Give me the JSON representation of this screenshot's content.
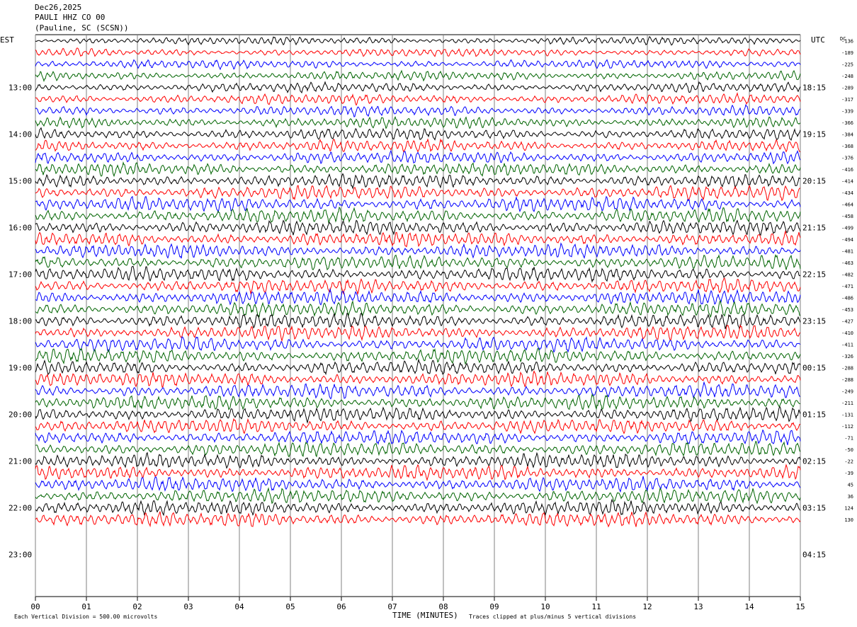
{
  "header": {
    "date": "Dec26,2025",
    "station": "PAULI HHZ CO 00",
    "location": "(Pauline, SC (SCSN))"
  },
  "left_label": "EST",
  "right_label": "UTC",
  "dc_label": "DC",
  "footer": {
    "scale_note": "Each Vertical Division =  500.00 microvolts",
    "x_axis_title": "TIME (MINUTES)",
    "clip_note": "Traces clipped at plus/minus 5 vertical divisions"
  },
  "chart_data": {
    "type": "line",
    "subtype": "helicorder",
    "xlabel": "TIME (MINUTES)",
    "xlim": [
      0,
      15
    ],
    "x_ticks": [
      "00",
      "01",
      "02",
      "03",
      "04",
      "05",
      "06",
      "07",
      "08",
      "09",
      "10",
      "11",
      "12",
      "13",
      "14",
      "15"
    ],
    "est_hour_labels": [
      "13:00",
      "14:00",
      "15:00",
      "16:00",
      "17:00",
      "18:00",
      "19:00",
      "20:00",
      "21:00",
      "22:00",
      "23:00"
    ],
    "utc_hour_labels": [
      "18:15",
      "19:15",
      "20:15",
      "21:15",
      "22:15",
      "23:15",
      "00:15",
      "01:15",
      "02:15",
      "03:15",
      "04:15"
    ],
    "trace_colors": [
      "#000000",
      "#ff0000",
      "#0000ff",
      "#006400"
    ],
    "traces_plotted": 42,
    "dc_offsets": [
      "-136",
      "-189",
      "-225",
      "-248",
      "-289",
      "-317",
      "-339",
      "-366",
      "-384",
      "-368",
      "-376",
      "-416",
      "-414",
      "-434",
      "-464",
      "-458",
      "-499",
      "-494",
      "-481",
      "-463",
      "-482",
      "-471",
      "-486",
      "-453",
      "-427",
      "-410",
      "-411",
      "-326",
      "-288",
      "-288",
      "-249",
      "-211",
      "-131",
      "-112",
      "-71",
      "-50",
      "-22",
      "-39",
      "45",
      "36",
      "124",
      "130"
    ],
    "grid": "vertical lines at each minute"
  }
}
